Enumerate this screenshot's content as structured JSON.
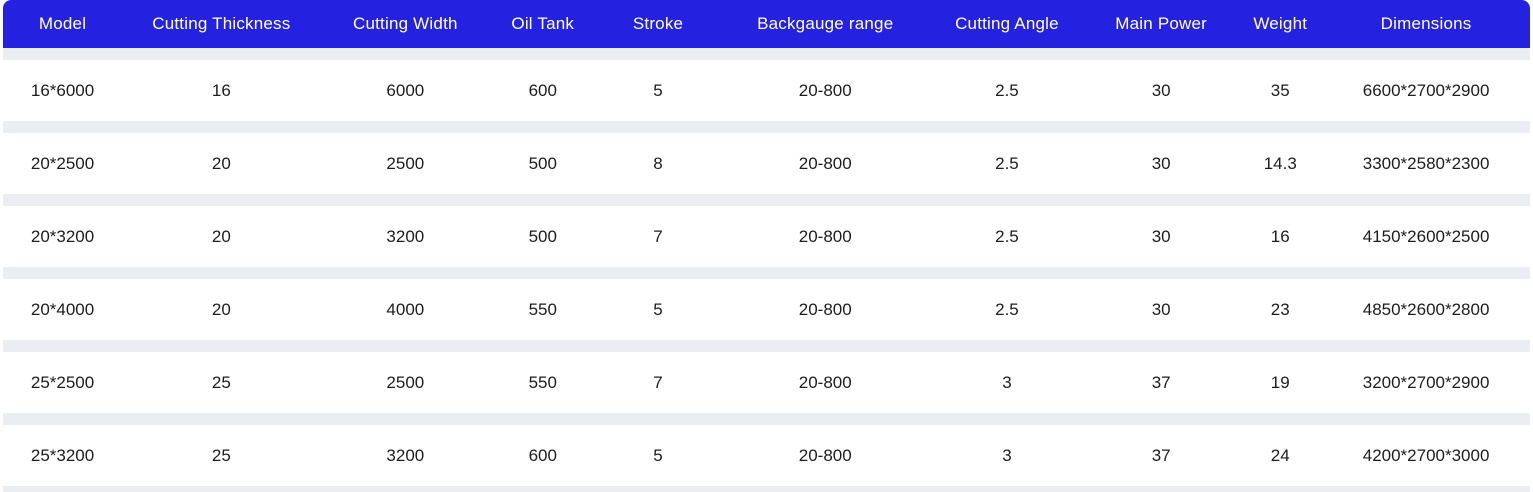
{
  "table": {
    "columns": [
      "Model",
      "Cutting Thickness",
      "Cutting Width",
      "Oil Tank",
      "Stroke",
      "Backgauge range",
      "Cutting Angle",
      "Main Power",
      "Weight",
      "Dimensions"
    ],
    "rows": [
      [
        "16*6000",
        "16",
        "6000",
        "600",
        "5",
        "20-800",
        "2.5",
        "30",
        "35",
        "6600*2700*2900"
      ],
      [
        "20*2500",
        "20",
        "2500",
        "500",
        "8",
        "20-800",
        "2.5",
        "30",
        "14.3",
        "3300*2580*2300"
      ],
      [
        "20*3200",
        "20",
        "3200",
        "500",
        "7",
        "20-800",
        "2.5",
        "30",
        "16",
        "4150*2600*2500"
      ],
      [
        "20*4000",
        "20",
        "4000",
        "550",
        "5",
        "20-800",
        "2.5",
        "30",
        "23",
        "4850*2600*2800"
      ],
      [
        "25*2500",
        "25",
        "2500",
        "550",
        "7",
        "20-800",
        "3",
        "37",
        "19",
        "3200*2700*2900"
      ],
      [
        "25*3200",
        "25",
        "3200",
        "600",
        "5",
        "20-800",
        "3",
        "37",
        "24",
        "4200*2700*3000"
      ]
    ],
    "colors": {
      "header_bg": "#2421e1",
      "header_text": "#ffffff",
      "row_bg": "#ffffff",
      "gap_bg": "#eaeef2",
      "cell_text": "#1d1d1d"
    }
  }
}
